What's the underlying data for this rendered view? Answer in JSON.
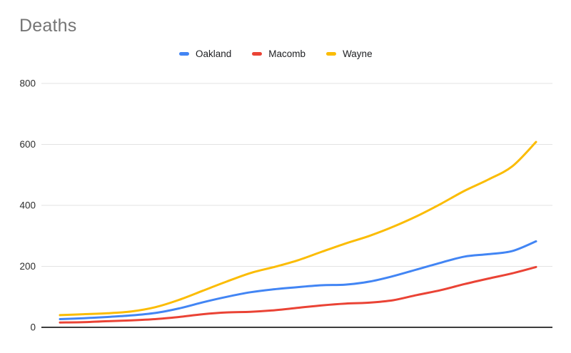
{
  "chart": {
    "title": "Deaths",
    "title_color": "#757575",
    "legend": [
      {
        "label": "Oakland",
        "color": "#4285f4"
      },
      {
        "label": "Macomb",
        "color": "#ea4335"
      },
      {
        "label": "Wayne",
        "color": "#fbbc04"
      }
    ]
  },
  "chart_data": {
    "type": "line",
    "title": "Deaths",
    "x": [
      0,
      1,
      2,
      3,
      4,
      5,
      6,
      7,
      8,
      9,
      10,
      11,
      12,
      13,
      14,
      15,
      16,
      17,
      18,
      19,
      20
    ],
    "x_axis_labels": [],
    "series": [
      {
        "name": "Oakland",
        "color": "#4285f4",
        "values": [
          27,
          30,
          34,
          39,
          47,
          62,
          82,
          100,
          115,
          125,
          132,
          138,
          140,
          150,
          168,
          190,
          212,
          232,
          240,
          250,
          282
        ]
      },
      {
        "name": "Macomb",
        "color": "#ea4335",
        "values": [
          16,
          17,
          20,
          23,
          27,
          34,
          43,
          49,
          51,
          56,
          64,
          72,
          78,
          81,
          89,
          106,
          122,
          142,
          160,
          177,
          198
        ]
      },
      {
        "name": "Wayne",
        "color": "#fbbc04",
        "values": [
          40,
          43,
          46,
          52,
          66,
          90,
          120,
          150,
          178,
          198,
          220,
          248,
          275,
          300,
          330,
          365,
          405,
          448,
          485,
          528,
          608
        ]
      }
    ],
    "ylim": [
      0,
      800
    ],
    "yticks": [
      0,
      200,
      400,
      600,
      800
    ],
    "grid": true,
    "legend_position": "top-center",
    "gridline_color": "#e3e3e3",
    "axis_line_color": "#212121",
    "background": "#ffffff"
  }
}
